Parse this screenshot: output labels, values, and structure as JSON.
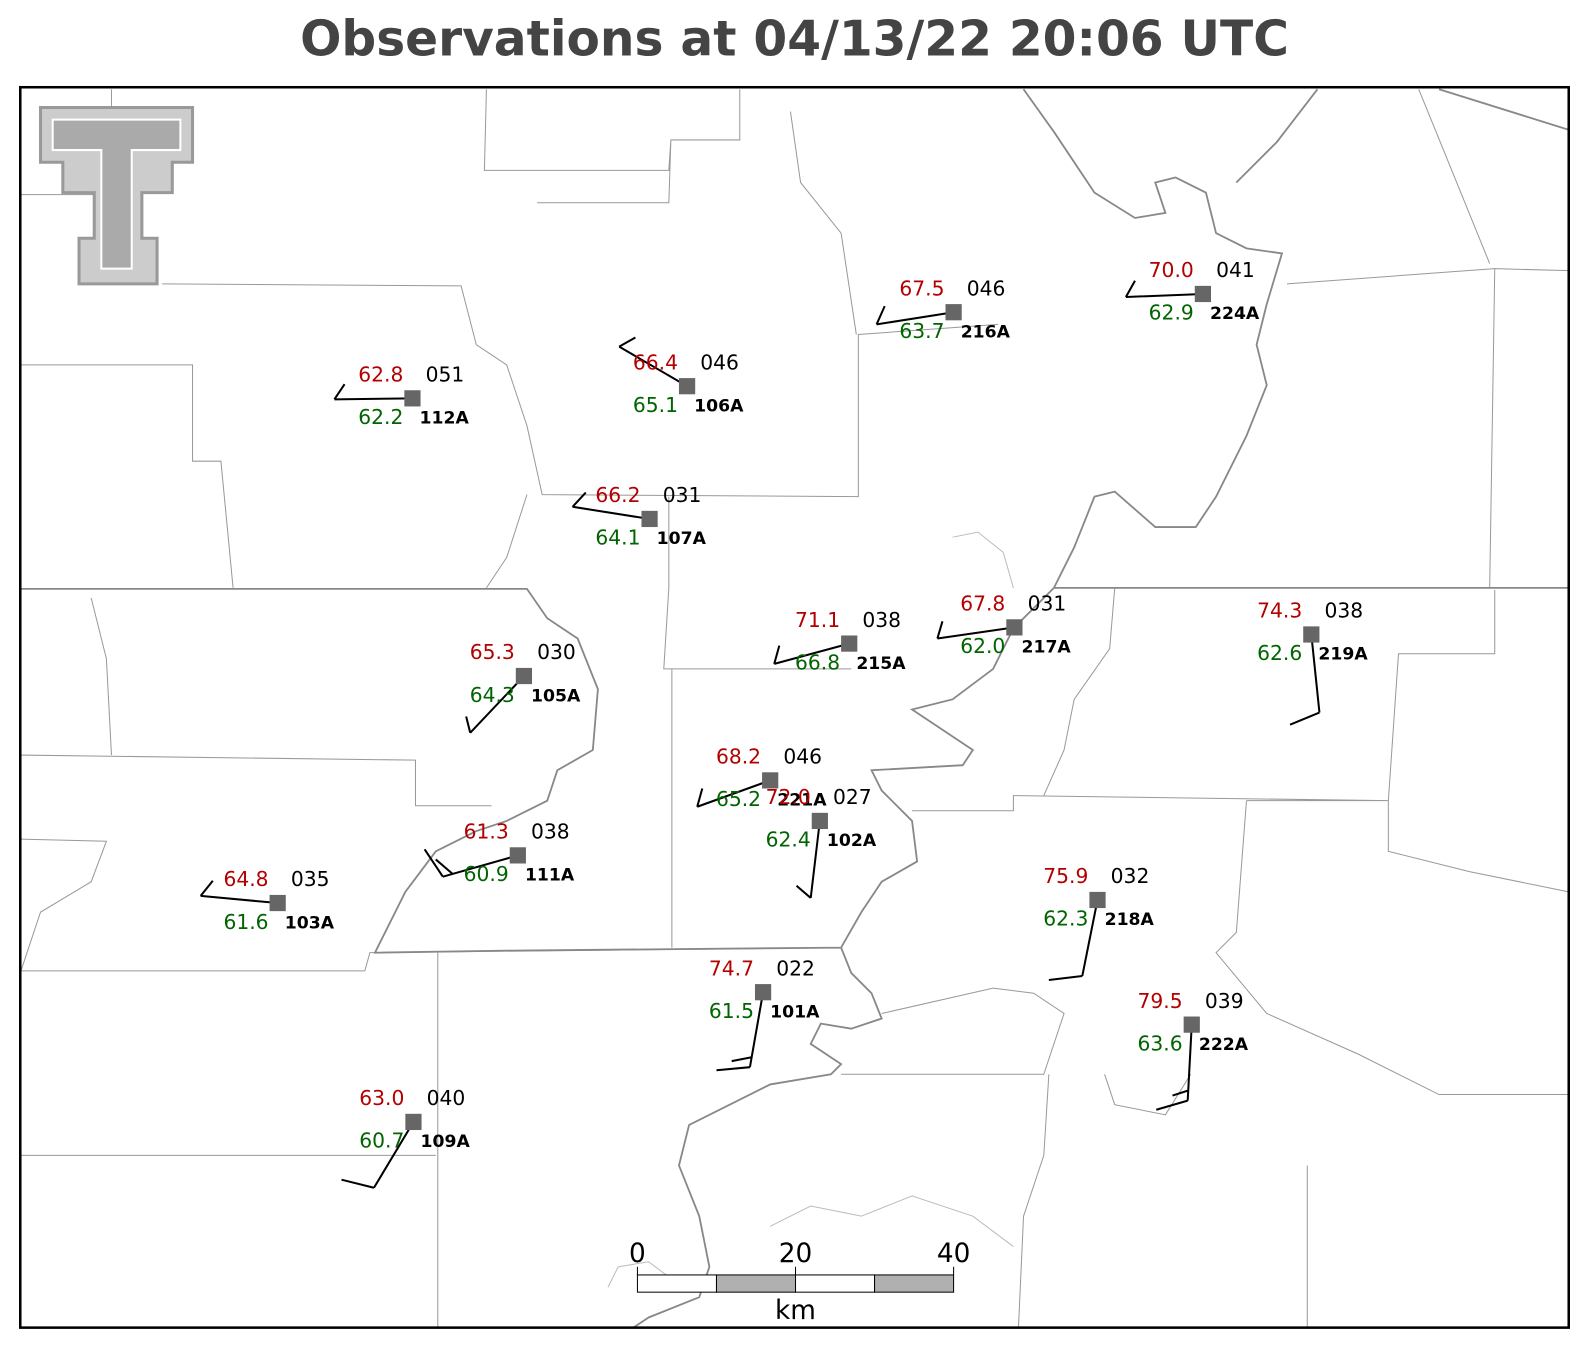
{
  "title": "Observations at 04/13/22 20:06 UTC",
  "stations": [
    {
      "id": "112A",
      "temperature": "62.8",
      "dewpoint": "62.2",
      "pressure": "051"
    },
    {
      "id": "106A",
      "temperature": "66.4",
      "dewpoint": "65.1",
      "pressure": "046"
    },
    {
      "id": "107A",
      "temperature": "66.2",
      "dewpoint": "64.1",
      "pressure": "031"
    },
    {
      "id": "216A",
      "temperature": "67.5",
      "dewpoint": "63.7",
      "pressure": "046"
    },
    {
      "id": "224A",
      "temperature": "70.0",
      "dewpoint": "62.9",
      "pressure": "041"
    },
    {
      "id": "215A",
      "temperature": "71.1",
      "dewpoint": "66.8",
      "pressure": "038"
    },
    {
      "id": "217A",
      "temperature": "67.8",
      "dewpoint": "62.0",
      "pressure": "031"
    },
    {
      "id": "219A",
      "temperature": "74.3",
      "dewpoint": "62.6",
      "pressure": "038"
    },
    {
      "id": "105A",
      "temperature": "65.3",
      "dewpoint": "64.3",
      "pressure": "030"
    },
    {
      "id": "221A",
      "temperature": "68.2",
      "dewpoint": "65.2",
      "pressure": "046"
    },
    {
      "id": "102A",
      "temperature": "72.0",
      "dewpoint": "62.4",
      "pressure": "027"
    },
    {
      "id": "111A",
      "temperature": "61.3",
      "dewpoint": "60.9",
      "pressure": "038"
    },
    {
      "id": "103A",
      "temperature": "64.8",
      "dewpoint": "61.6",
      "pressure": "035"
    },
    {
      "id": "218A",
      "temperature": "75.9",
      "dewpoint": "62.3",
      "pressure": "032"
    },
    {
      "id": "101A",
      "temperature": "74.7",
      "dewpoint": "61.5",
      "pressure": "022"
    },
    {
      "id": "222A",
      "temperature": "79.5",
      "dewpoint": "63.6",
      "pressure": "039"
    },
    {
      "id": "109A",
      "temperature": "63.0",
      "dewpoint": "60.7",
      "pressure": "040"
    }
  ],
  "scale_bar": {
    "ticks": [
      0,
      20,
      40
    ],
    "unit": "km"
  }
}
